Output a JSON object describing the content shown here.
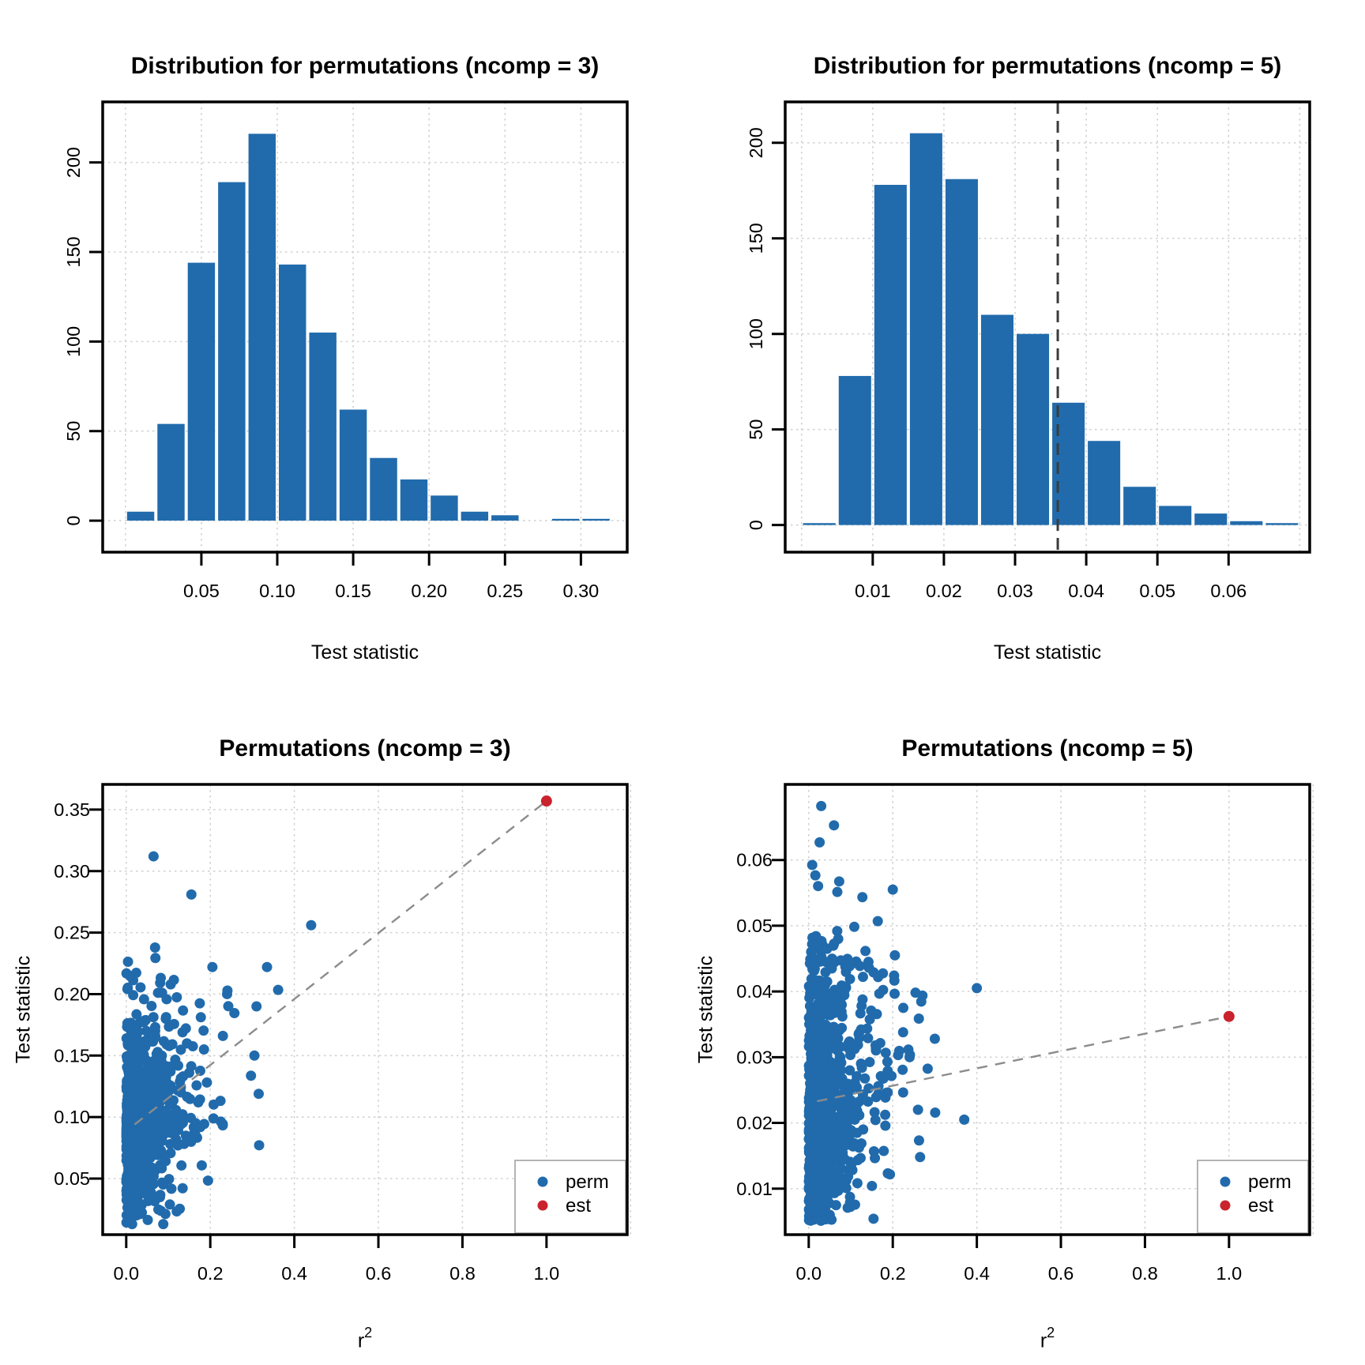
{
  "colors": {
    "bar": "#216BAC",
    "perm": "#216BAC",
    "est": "#C9232D",
    "grid": "#D2D2D2",
    "axis": "#000000",
    "trend": "#8C8C8C",
    "vline": "#3C3C3C",
    "legend_border": "#ABABAB",
    "background": "#FFFFFF",
    "text": "#000000"
  },
  "chart_data": [
    {
      "id": "hist-ncomp3",
      "type": "bar",
      "subtype": "histogram",
      "title": "Distribution for permutations (ncomp = 3)",
      "xlabel": "Test statistic",
      "ylabel": "",
      "bin_start": 0,
      "bin_width": 0.02,
      "counts": [
        5,
        54,
        144,
        189,
        216,
        143,
        105,
        62,
        35,
        23,
        14,
        5,
        3,
        0,
        1,
        1
      ],
      "xticks": [
        0.05,
        0.1,
        0.15,
        0.2,
        0.25,
        0.3
      ],
      "xtick_labels": [
        "0.05",
        "0.10",
        "0.15",
        "0.20",
        "0.25",
        "0.30"
      ],
      "yticks": [
        0,
        50,
        100,
        150,
        200
      ],
      "ytick_labels": [
        "0",
        "50",
        "100",
        "150",
        "200"
      ],
      "ytick_rotated": true,
      "grid_x": [
        0,
        0.05,
        0.1,
        0.15,
        0.2,
        0.25,
        0.3
      ],
      "grid_y": [
        0,
        50,
        100,
        150,
        200
      ],
      "xlim": [
        -0.015,
        0.3305
      ],
      "ylim": [
        -17.6,
        233.8
      ],
      "vline": null
    },
    {
      "id": "hist-ncomp5",
      "type": "bar",
      "subtype": "histogram",
      "title": "Distribution for permutations (ncomp = 5)",
      "xlabel": "Test statistic",
      "ylabel": "",
      "bin_start": 0,
      "bin_width": 0.005,
      "counts": [
        1,
        78,
        178,
        205,
        181,
        110,
        100,
        64,
        44,
        20,
        10,
        6,
        2,
        1
      ],
      "xticks": [
        0.01,
        0.02,
        0.03,
        0.04,
        0.05,
        0.06
      ],
      "xtick_labels": [
        "0.01",
        "0.02",
        "0.03",
        "0.04",
        "0.05",
        "0.06"
      ],
      "yticks": [
        0,
        50,
        100,
        150,
        200
      ],
      "ytick_labels": [
        "0",
        "50",
        "100",
        "150",
        "200"
      ],
      "ytick_rotated": true,
      "grid_x": [
        0,
        0.01,
        0.02,
        0.03,
        0.04,
        0.05,
        0.06,
        0.07
      ],
      "grid_y": [
        0,
        50,
        100,
        150,
        200
      ],
      "xlim": [
        -0.0023,
        0.0714
      ],
      "ylim": [
        -14.2,
        221.4
      ],
      "vline": 0.036
    },
    {
      "id": "scatter-ncomp3",
      "type": "scatter",
      "title": "Permutations (ncomp = 3)",
      "xlabel_base": "r",
      "xlabel_sup": "2",
      "ylabel": "Test statistic",
      "xticks": [
        0.0,
        0.2,
        0.4,
        0.6,
        0.8,
        1.0
      ],
      "xtick_labels": [
        "0.0",
        "0.2",
        "0.4",
        "0.6",
        "0.8",
        "1.0"
      ],
      "yticks": [
        0.05,
        0.1,
        0.15,
        0.2,
        0.25,
        0.3,
        0.35
      ],
      "ytick_labels": [
        "0.05",
        "0.10",
        "0.15",
        "0.20",
        "0.25",
        "0.30",
        "0.35"
      ],
      "ytick_rotated": false,
      "grid_x": [
        0,
        0.2,
        0.4,
        0.6,
        0.8,
        1.0,
        1.2
      ],
      "grid_y": [
        0.05,
        0.1,
        0.15,
        0.2,
        0.25,
        0.3,
        0.35
      ],
      "xlim": [
        -0.056,
        1.192
      ],
      "ylim": [
        0.0044,
        0.3705
      ],
      "est": [
        1.0,
        0.357
      ],
      "trend": [
        [
          0.02,
          0.094
        ],
        [
          1.0,
          0.357
        ]
      ],
      "legend": {
        "items": [
          {
            "label": "perm",
            "color_key": "perm"
          },
          {
            "label": "est",
            "color_key": "est"
          }
        ]
      },
      "cluster": {
        "n": 990,
        "seed": 7,
        "y_bins": {
          "start": 0,
          "width": 0.02,
          "counts": [
            5,
            54,
            144,
            189,
            216,
            143,
            105,
            62,
            35,
            23,
            14,
            5,
            3,
            0,
            1,
            1
          ]
        },
        "y_max": 0.26,
        "y_min": 0.013,
        "y_ref": 0.32,
        "x_scale": 0.055,
        "x_a": 0.35,
        "x_b": 1.5,
        "x_clip": 0.42
      },
      "outliers": [
        [
          0.065,
          0.312
        ],
        [
          0.155,
          0.281
        ],
        [
          0.44,
          0.256
        ],
        [
          0.335,
          0.222
        ],
        [
          0.305,
          0.15
        ],
        [
          0.24,
          0.2
        ],
        [
          0.31,
          0.19
        ],
        [
          0.205,
          0.222
        ],
        [
          0.23,
          0.166
        ],
        [
          0.185,
          0.155
        ]
      ]
    },
    {
      "id": "scatter-ncomp5",
      "type": "scatter",
      "title": "Permutations (ncomp = 5)",
      "xlabel_base": "r",
      "xlabel_sup": "2",
      "ylabel": "Test statistic",
      "xticks": [
        0.0,
        0.2,
        0.4,
        0.6,
        0.8,
        1.0
      ],
      "xtick_labels": [
        "0.0",
        "0.2",
        "0.4",
        "0.6",
        "0.8",
        "1.0"
      ],
      "yticks": [
        0.01,
        0.02,
        0.03,
        0.04,
        0.05,
        0.06
      ],
      "ytick_labels": [
        "0.01",
        "0.02",
        "0.03",
        "0.04",
        "0.05",
        "0.06"
      ],
      "ytick_rotated": false,
      "grid_x": [
        0,
        0.2,
        0.4,
        0.6,
        0.8,
        1.0,
        1.2
      ],
      "grid_y": [
        0.01,
        0.02,
        0.03,
        0.04,
        0.05,
        0.06
      ],
      "xlim": [
        -0.056,
        1.192
      ],
      "ylim": [
        0.003,
        0.0715
      ],
      "est": [
        1.0,
        0.0362
      ],
      "trend": [
        [
          0.02,
          0.0233
        ],
        [
          1.0,
          0.0362
        ]
      ],
      "legend": {
        "items": [
          {
            "label": "perm",
            "color_key": "perm"
          },
          {
            "label": "est",
            "color_key": "est"
          }
        ]
      },
      "cluster": {
        "n": 992,
        "seed": 11,
        "y_bins": {
          "start": 0,
          "width": 0.005,
          "counts": [
            1,
            78,
            178,
            205,
            181,
            110,
            100,
            64,
            44,
            20,
            10,
            6,
            2,
            1
          ]
        },
        "y_max": 1,
        "y_min": 0.0042,
        "y_ref": 0.07,
        "x_scale": 0.055,
        "x_a": 0.35,
        "x_b": 1.5,
        "x_clip": 0.4
      },
      "outliers": [
        [
          0.2,
          0.0555
        ],
        [
          0.3,
          0.0328
        ],
        [
          0.37,
          0.0205
        ],
        [
          0.26,
          0.022
        ],
        [
          0.265,
          0.0148
        ],
        [
          0.205,
          0.0455
        ],
        [
          0.225,
          0.0375
        ],
        [
          0.24,
          0.03
        ]
      ]
    }
  ]
}
